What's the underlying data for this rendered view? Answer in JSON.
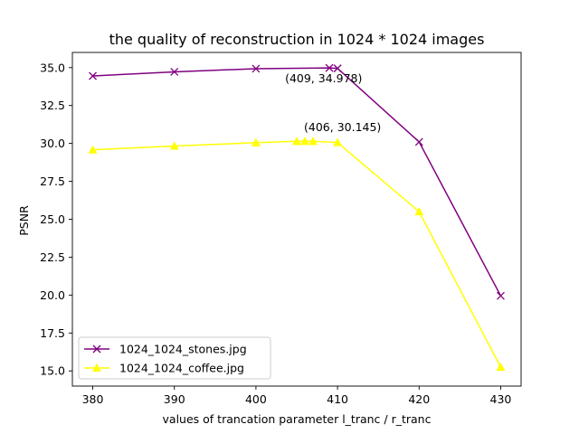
{
  "chart_data": {
    "type": "line",
    "title": "the quality of reconstruction in 1024 * 1024 images",
    "xlabel": "values of trancation parameter l_tranc / r_tranc",
    "ylabel": "PSNR",
    "xlim": [
      377.5,
      432.5
    ],
    "ylim": [
      14.0,
      36.0
    ],
    "xticks": [
      380,
      390,
      400,
      410,
      420,
      430
    ],
    "yticks": [
      15.0,
      17.5,
      20.0,
      22.5,
      25.0,
      27.5,
      30.0,
      32.5,
      35.0
    ],
    "xtick_labels": [
      "380",
      "390",
      "400",
      "410",
      "420",
      "430"
    ],
    "ytick_labels": [
      "15.0",
      "17.5",
      "20.0",
      "22.5",
      "25.0",
      "27.5",
      "30.0",
      "32.5",
      "35.0"
    ],
    "grid": false,
    "legend_position": "lower-left",
    "series": [
      {
        "name": "1024_1024_stones.jpg",
        "color": "#800080",
        "marker": "x",
        "x": [
          380,
          390,
          400,
          409,
          410,
          420,
          430
        ],
        "y": [
          34.45,
          34.72,
          34.93,
          34.978,
          34.95,
          30.1,
          19.95
        ]
      },
      {
        "name": "1024_1024_coffee.jpg",
        "color": "#ffff00",
        "marker": "triangle",
        "x": [
          380,
          390,
          400,
          405,
          406,
          407,
          410,
          420,
          430
        ],
        "y": [
          29.58,
          29.83,
          30.05,
          30.14,
          30.145,
          30.14,
          30.06,
          25.5,
          15.25
        ]
      }
    ],
    "annotations": [
      {
        "text": "(409, 34.978)",
        "x": 409,
        "y": 34.978
      },
      {
        "text": "(406, 30.145)",
        "x": 406,
        "y": 30.145
      }
    ]
  }
}
